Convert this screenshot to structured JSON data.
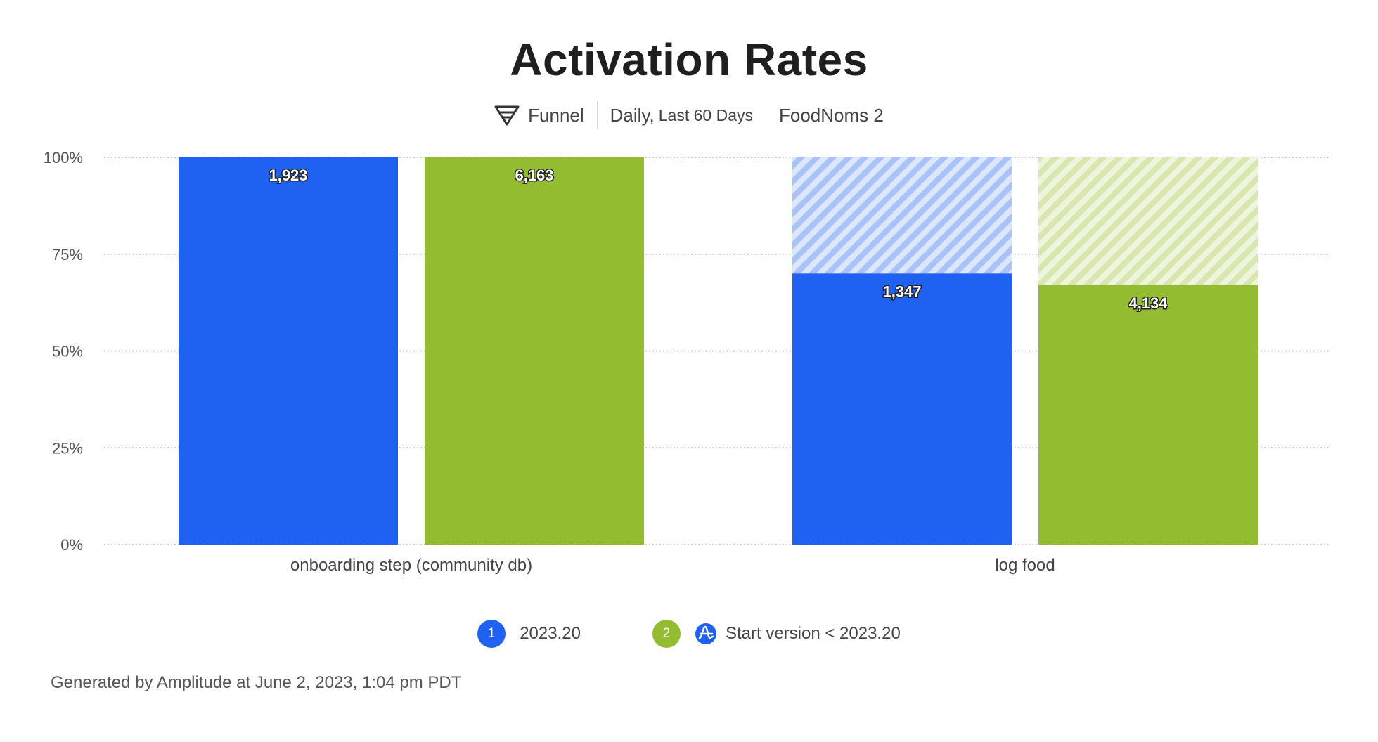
{
  "chart_data": {
    "type": "bar",
    "title": "Activation Rates",
    "subtitle": {
      "chart_kind": "Funnel",
      "interval": "Daily,",
      "range": "Last 60 Days",
      "project": "FoodNoms 2"
    },
    "categories": [
      "onboarding step (community db)",
      "log food"
    ],
    "ylim": [
      0,
      100
    ],
    "yticks": [
      "0%",
      "25%",
      "50%",
      "75%",
      "100%"
    ],
    "ytick_values": [
      0,
      25,
      50,
      75,
      100
    ],
    "grid": true,
    "series": [
      {
        "name": "2023.20",
        "badge": "1",
        "color": "#1f61f0",
        "faded_color": "#a9c2f8",
        "values": [
          100,
          70
        ],
        "labels": [
          "1,923",
          "1,347"
        ]
      },
      {
        "name": "Start version < 2023.20",
        "badge": "2",
        "color": "#94bc30",
        "faded_color": "#d6e8b0",
        "values": [
          100,
          67
        ],
        "labels": [
          "6,163",
          "4,134"
        ]
      }
    ],
    "legend_position": "bottom-center"
  },
  "legend": {
    "item1_label": "2023.20",
    "item2_label": "Start version < 2023.20"
  },
  "footer": "Generated by Amplitude at June 2, 2023, 1:04 pm PDT",
  "icons": {
    "funnel": "funnel-icon",
    "segment": "amplitude-icon"
  },
  "colors": {
    "accent_blue": "#1f61f0",
    "accent_green": "#94bc30"
  }
}
